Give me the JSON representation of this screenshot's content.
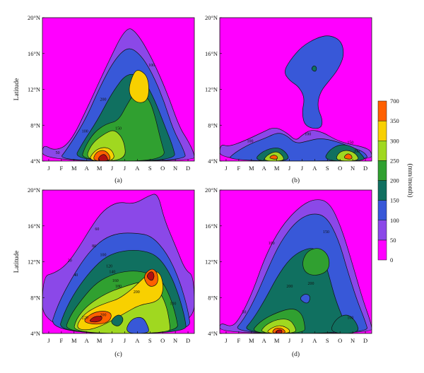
{
  "chart_data": {
    "type": "heatmap",
    "x_ticks": [
      "J",
      "F",
      "M",
      "A",
      "M",
      "J",
      "J",
      "A",
      "S",
      "O",
      "N",
      "D"
    ],
    "y_ticks": [
      "4°N",
      "8°N",
      "12°N",
      "16°N",
      "20°N"
    ],
    "y_range": [
      4,
      20
    ],
    "ylabel": "Latitude",
    "colorbar": {
      "label": "(mm/month)",
      "levels": [
        0,
        50,
        100,
        150,
        200,
        250,
        300,
        350,
        700
      ],
      "colors": [
        "#ff00ff",
        "#8b48e8",
        "#3858d8",
        "#107060",
        "#30a030",
        "#a0d820",
        "#f8d000",
        "#ff6000",
        "#b01010"
      ]
    },
    "panels": [
      {
        "caption": "(a)",
        "ylabel": "Latitude",
        "contour_labels": [
          "50",
          "100",
          "150",
          "200",
          "100"
        ]
      },
      {
        "caption": "(b)",
        "ylabel": "",
        "contour_labels": [
          "100",
          "100",
          "150",
          "200"
        ]
      },
      {
        "caption": "(c)",
        "ylabel": "Latitude",
        "contour_labels": [
          "20",
          "40",
          "60",
          "80",
          "100",
          "120",
          "140",
          "160",
          "180",
          "200",
          "200",
          "220",
          "100"
        ]
      },
      {
        "caption": "(d)",
        "ylabel": "",
        "contour_labels": [
          "50",
          "100",
          "150",
          "200",
          "200",
          "100"
        ]
      }
    ]
  }
}
